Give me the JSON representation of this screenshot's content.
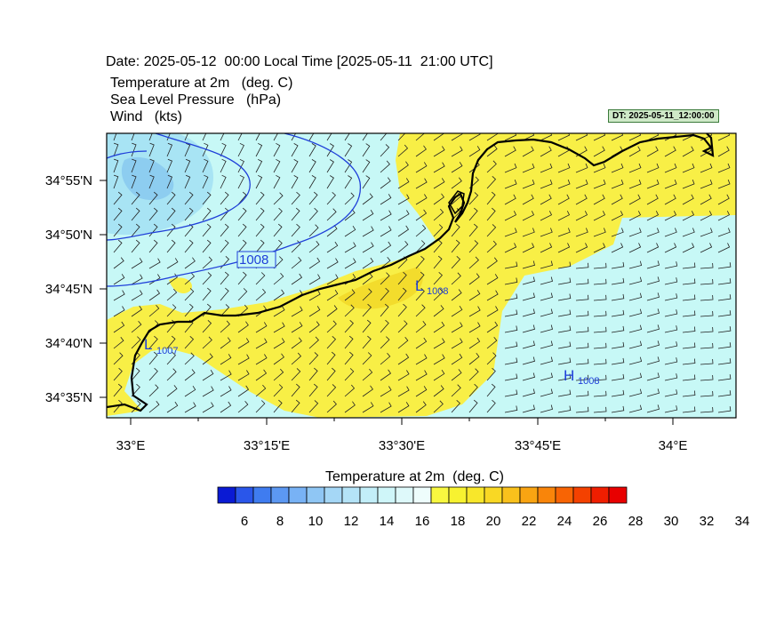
{
  "header": {
    "date_line": "Date: 2025-05-12  00:00 Local Time [2025-05-11  21:00 UTC]",
    "variables": [
      "Temperature at 2m   (deg. C)",
      "Sea Level Pressure   (hPa)",
      "Wind   (kts)"
    ],
    "dt_badge": "DT: 2025-05-11_12:00:00"
  },
  "map": {
    "lon_ticks": [
      "33°E",
      "33°15'E",
      "33°30'E",
      "33°45'E",
      "34°E"
    ],
    "lat_ticks": [
      "34°55'N",
      "34°50'N",
      "34°45'N",
      "34°40'N",
      "34°35'N"
    ],
    "isobar_label": "1008",
    "pressure_centers": [
      {
        "type": "L",
        "value": "1007"
      },
      {
        "type": "L",
        "value": "1008"
      },
      {
        "type": "H",
        "value": "1008"
      }
    ],
    "colors": {
      "warm_fill": "#f8ef46",
      "warm_core": "#f3dc2c",
      "cool_fill": "#c7f8f6",
      "cold_fill": "#a8e4f4",
      "colder_fill": "#8dcdf0",
      "isobar": "#1f3fd9",
      "coast": "#000000"
    }
  },
  "colorbar": {
    "title": "Temperature at 2m  (deg. C)",
    "labels": [
      "6",
      "8",
      "10",
      "12",
      "14",
      "16",
      "18",
      "20",
      "22",
      "24",
      "26",
      "28",
      "30",
      "32",
      "34"
    ],
    "colors": [
      "#0a1ad4",
      "#2a56ea",
      "#3f7cf0",
      "#5c98f2",
      "#78b2f5",
      "#8fc6f4",
      "#a5d7f6",
      "#b4e3f7",
      "#c2eef8",
      "#cff6f9",
      "#def9fa",
      "#eefdfc",
      "#f8f840",
      "#f7f230",
      "#f8e72a",
      "#f9d824",
      "#f9c11c",
      "#f9a412",
      "#f9850a",
      "#f86404",
      "#f44100",
      "#f01e00",
      "#e80000"
    ]
  }
}
